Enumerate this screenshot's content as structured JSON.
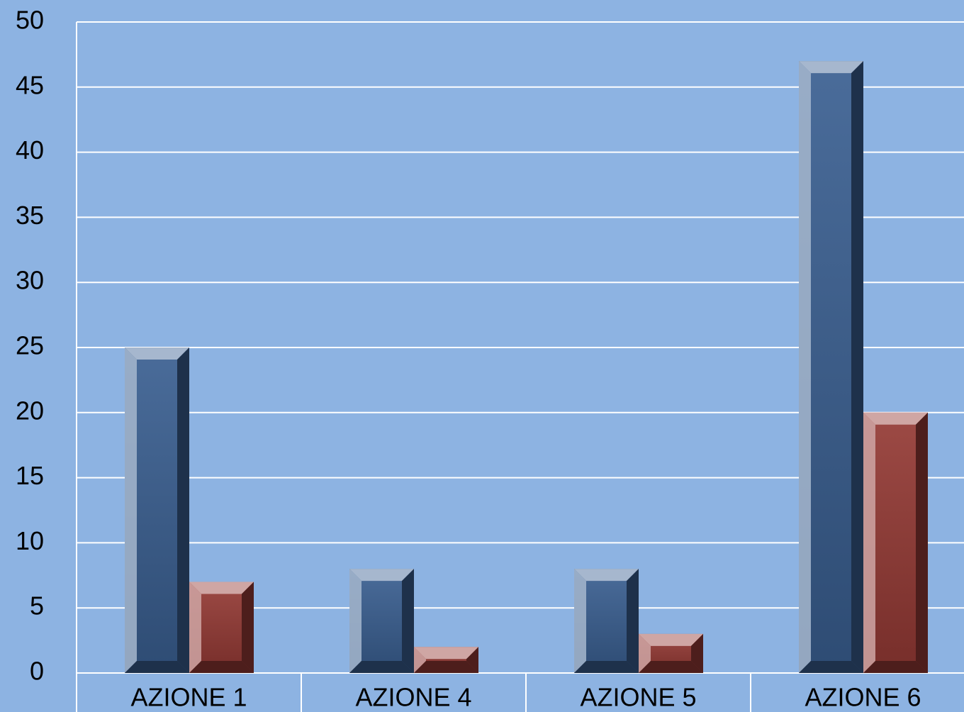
{
  "chart_data": {
    "type": "bar",
    "categories": [
      "AZIONE 1",
      "AZIONE 4",
      "AZIONE 5",
      "AZIONE 6"
    ],
    "series": [
      {
        "color": "#3a5f91",
        "values": [
          25,
          8,
          8,
          47
        ]
      },
      {
        "color": "#953a35",
        "values": [
          7,
          2,
          3,
          20
        ]
      }
    ],
    "ylim": [
      0,
      50
    ],
    "yticks": [
      0,
      5,
      10,
      15,
      20,
      25,
      30,
      35,
      40,
      45,
      50
    ],
    "grid": true
  }
}
